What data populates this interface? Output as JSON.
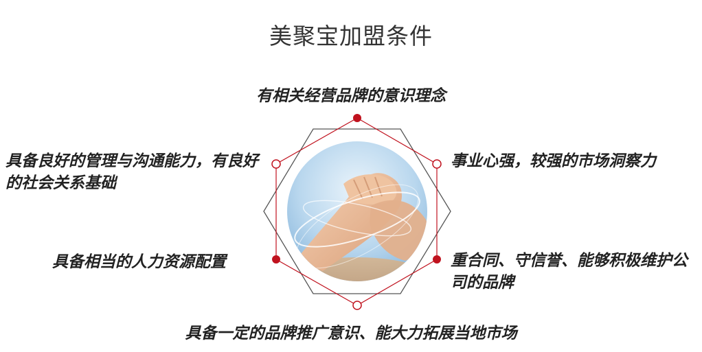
{
  "title": "美聚宝加盟条件",
  "conditions": {
    "top": "有相关经营品牌的意识理念",
    "left_top": "具备良好的管理与沟通能力，有良好的社会关系基础",
    "left_bottom": "具备相当的人力资源配置",
    "right_top": "事业心强，较强的市场洞察力",
    "right_bottom": "重合同、守信誉、能够积极维护公司的品牌",
    "bottom": "具备一定的品牌推广意识、能大力拓展当地市场"
  },
  "colors": {
    "accent": "#c0121e",
    "hexagon_outline": "#555555"
  }
}
